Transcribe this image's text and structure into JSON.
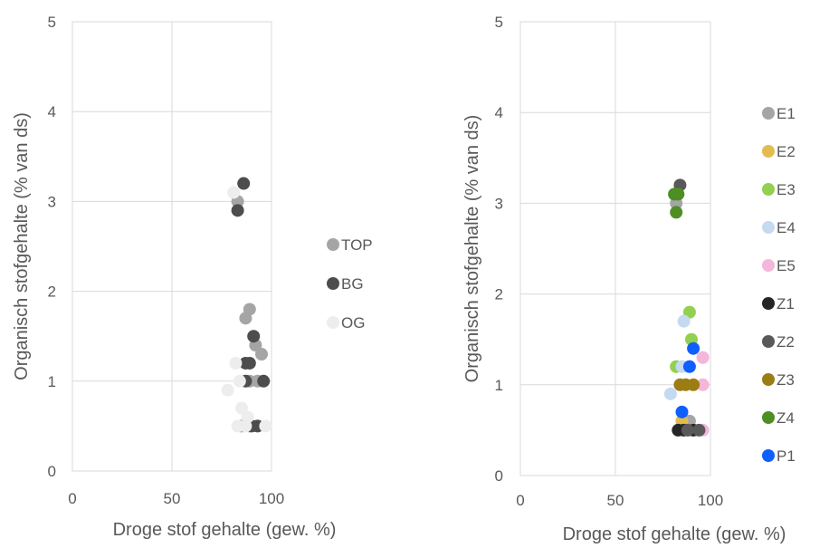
{
  "chart_data": [
    {
      "type": "scatter",
      "xlabel": "Droge stof gehalte (gew. %)",
      "ylabel": "Organisch stofgehalte (% van ds)",
      "xlim": [
        0,
        100
      ],
      "ylim": [
        0,
        5
      ],
      "x_ticks": [
        "0",
        "50",
        "100"
      ],
      "y_ticks": [
        "0",
        "1",
        "2",
        "3",
        "4",
        "5"
      ],
      "grid": "major both axes",
      "legend_position": "right",
      "series": [
        {
          "name": "TOP",
          "color": "#A5A5A5",
          "points": [
            [
              83,
              3.0
            ],
            [
              87,
              1.7
            ],
            [
              89,
              1.8
            ],
            [
              92,
              1.4
            ],
            [
              95,
              1.3
            ],
            [
              89,
              1.0
            ],
            [
              93,
              1.0
            ],
            [
              85,
              0.5
            ],
            [
              89,
              0.5
            ]
          ]
        },
        {
          "name": "BG",
          "color": "#4D4D4D",
          "points": [
            [
              86,
              3.2
            ],
            [
              83,
              2.9
            ],
            [
              91,
              1.5
            ],
            [
              87,
              1.2
            ],
            [
              89,
              1.2
            ],
            [
              87,
              1.0
            ],
            [
              96,
              1.0
            ],
            [
              90,
              0.5
            ],
            [
              93,
              0.5
            ]
          ]
        },
        {
          "name": "OG",
          "color": "#EDEDED",
          "points": [
            [
              81,
              3.1
            ],
            [
              82,
              1.2
            ],
            [
              78,
              0.9
            ],
            [
              84,
              1.0
            ],
            [
              85,
              0.7
            ],
            [
              88,
              0.6
            ],
            [
              83,
              0.5
            ],
            [
              87,
              0.5
            ],
            [
              97,
              0.5
            ]
          ]
        }
      ]
    },
    {
      "type": "scatter",
      "xlabel": "Droge stof gehalte (gew. %)",
      "ylabel": "Organisch stofgehalte (% van ds)",
      "xlim": [
        0,
        100
      ],
      "ylim": [
        0,
        5
      ],
      "x_ticks": [
        "0",
        "50",
        "100"
      ],
      "y_ticks": [
        "0",
        "1",
        "2",
        "3",
        "4",
        "5"
      ],
      "grid": "major both axes",
      "legend_position": "right",
      "series": [
        {
          "name": "E1",
          "color": "#A5A5A5",
          "points": [
            [
              82,
              3.0
            ],
            [
              89,
              0.6
            ]
          ]
        },
        {
          "name": "E2",
          "color": "#E2BC4F",
          "points": [
            [
              85,
              0.6
            ]
          ]
        },
        {
          "name": "E3",
          "color": "#92D050",
          "points": [
            [
              89,
              1.8
            ],
            [
              90,
              1.5
            ],
            [
              82,
              1.2
            ]
          ]
        },
        {
          "name": "E4",
          "color": "#C5D9F1",
          "points": [
            [
              86,
              1.7
            ],
            [
              85,
              1.2
            ],
            [
              79,
              0.9
            ]
          ]
        },
        {
          "name": "E5",
          "color": "#F4B6D9",
          "points": [
            [
              96,
              1.3
            ],
            [
              96,
              1.0
            ],
            [
              96,
              0.5
            ]
          ]
        },
        {
          "name": "Z1",
          "color": "#262626",
          "points": [
            [
              83,
              0.5
            ],
            [
              86,
              0.5
            ],
            [
              91,
              0.5
            ]
          ]
        },
        {
          "name": "Z2",
          "color": "#595959",
          "points": [
            [
              84,
              3.2
            ],
            [
              88,
              0.5
            ],
            [
              94,
              0.5
            ]
          ]
        },
        {
          "name": "Z3",
          "color": "#9C7D13",
          "points": [
            [
              84,
              1.0
            ],
            [
              87,
              1.0
            ],
            [
              91,
              1.0
            ]
          ]
        },
        {
          "name": "Z4",
          "color": "#4E8F24",
          "points": [
            [
              81,
              3.1
            ],
            [
              83,
              3.1
            ],
            [
              82,
              2.9
            ]
          ]
        },
        {
          "name": "P1",
          "color": "#0F5FFF",
          "points": [
            [
              91,
              1.4
            ],
            [
              89,
              1.2
            ],
            [
              85,
              0.7
            ]
          ]
        }
      ]
    }
  ]
}
